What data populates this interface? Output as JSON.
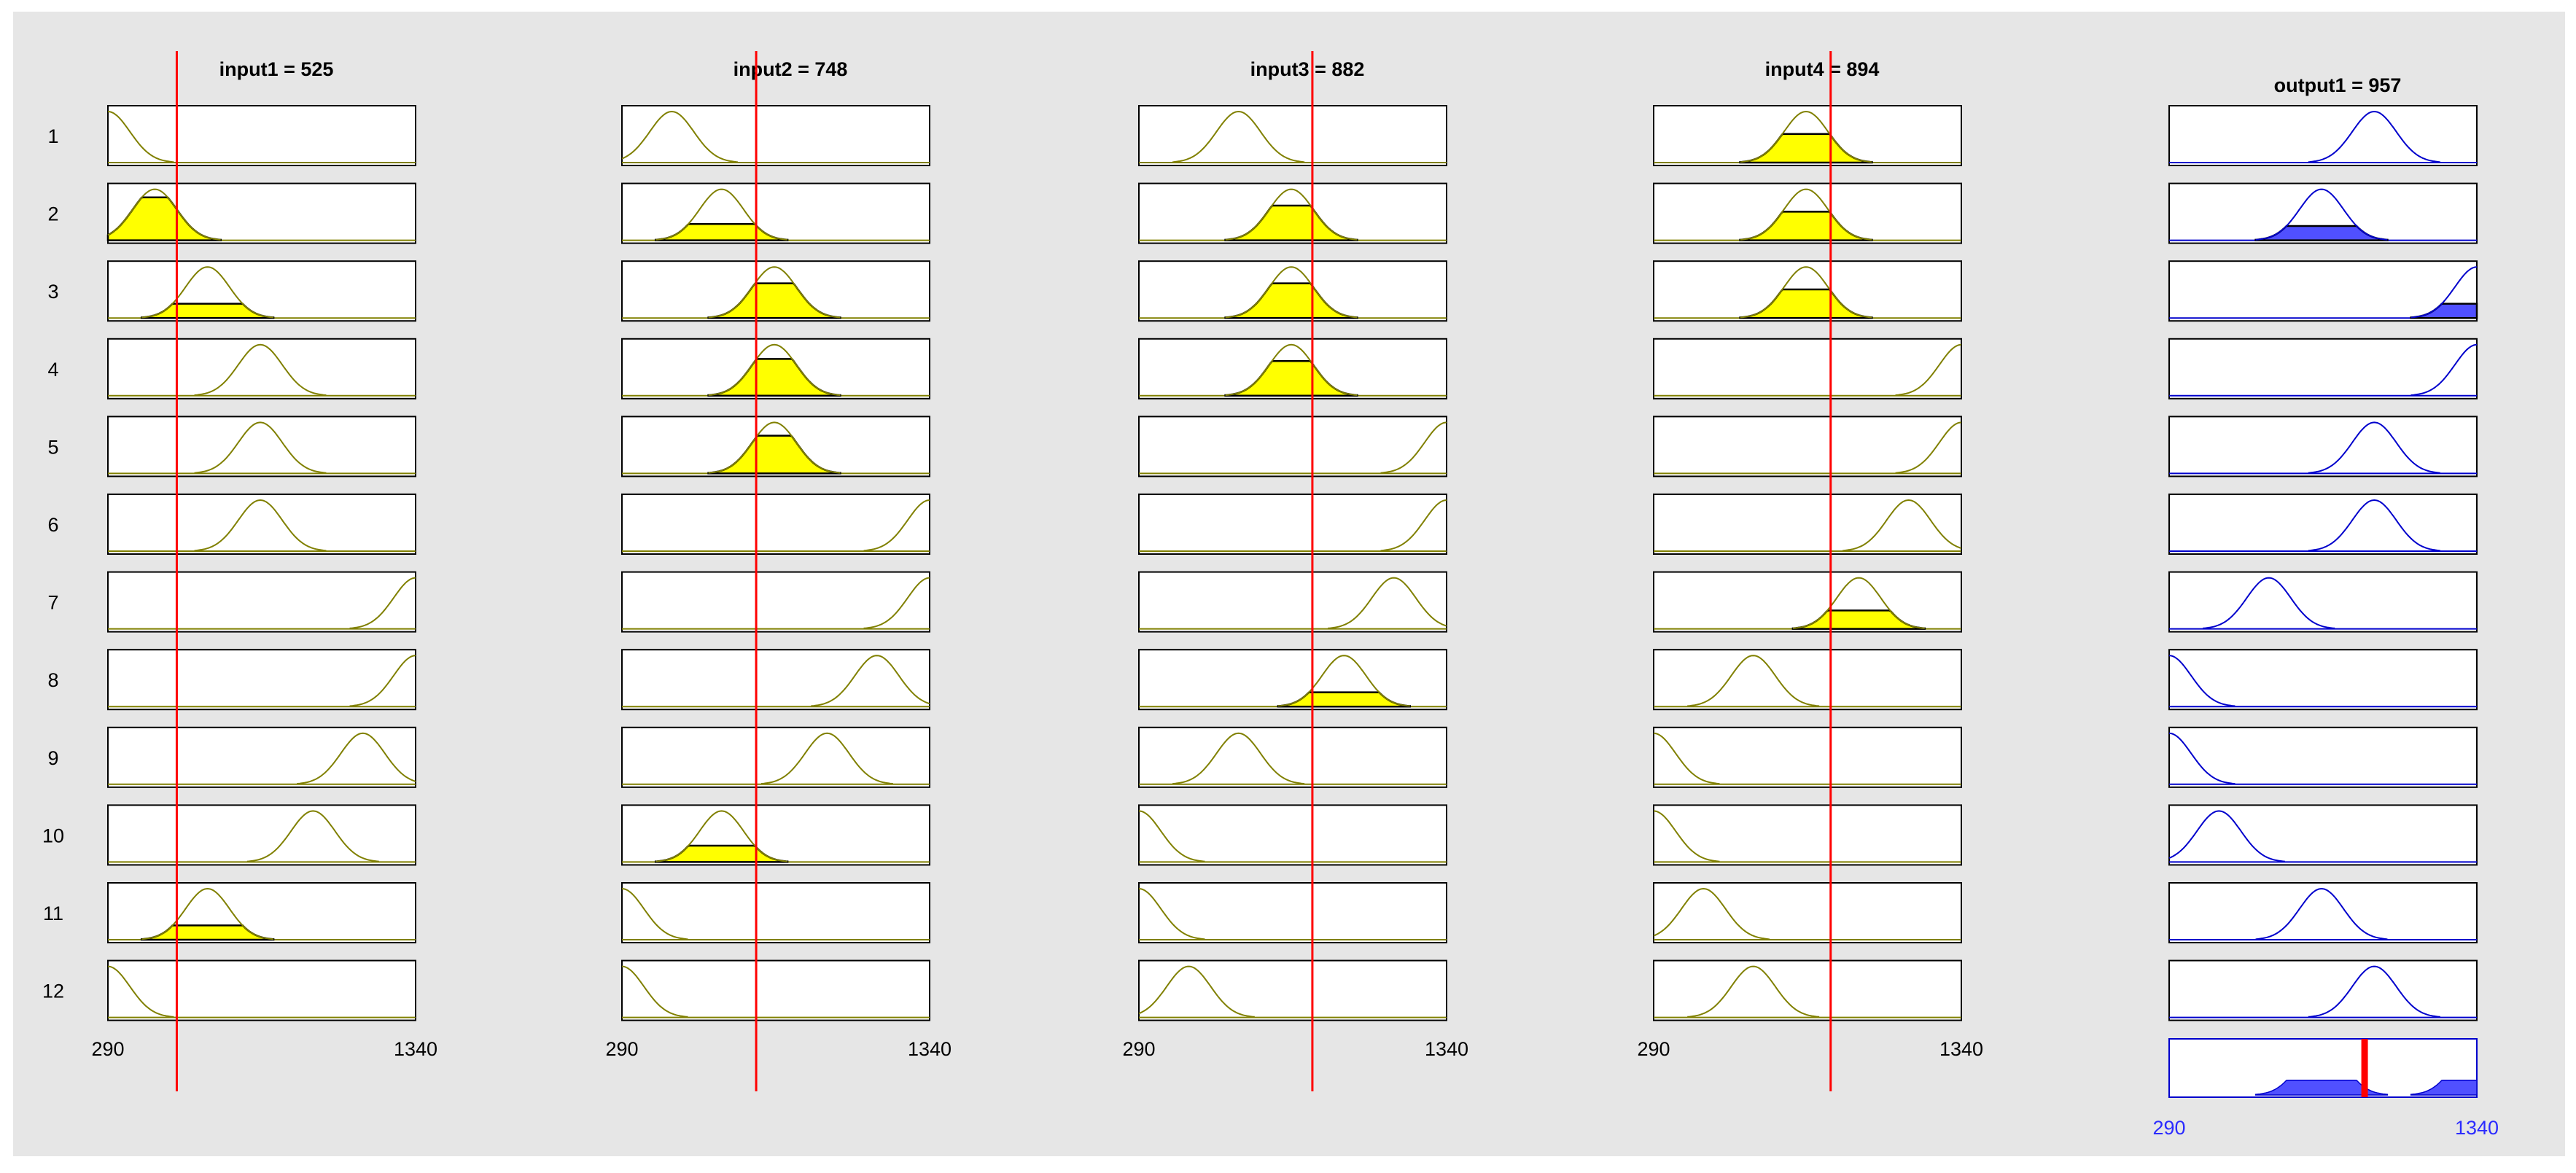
{
  "window": {
    "background": "#e6e6e6"
  },
  "range": {
    "min": 290,
    "max": 1340,
    "min_label": "290",
    "max_label": "1340"
  },
  "colors": {
    "input_curve": "#808000",
    "input_fill": "#ffff00",
    "output_curve": "#0000cc",
    "output_fill": "#5050ff",
    "marker": "#ff0000",
    "output_axis_label": "#2b2bff"
  },
  "inputs": [
    {
      "name": "input1",
      "value": 525,
      "title": "input1 = 525"
    },
    {
      "name": "input2",
      "value": 748,
      "title": "input2 = 748"
    },
    {
      "name": "input3",
      "value": 882,
      "title": "input3 = 882"
    },
    {
      "name": "input4",
      "value": 894,
      "title": "input4 = 894"
    }
  ],
  "output": {
    "name": "output1",
    "value": 957,
    "title": "output1 = 957"
  },
  "rule_labels": [
    "1",
    "2",
    "3",
    "4",
    "5",
    "6",
    "7",
    "8",
    "9",
    "10",
    "11",
    "12"
  ],
  "membership_centers": {
    "input1": [
      290,
      450,
      630,
      810,
      810,
      810,
      1340,
      1340,
      1160,
      990,
      630,
      290
    ],
    "input2": [
      460,
      630,
      810,
      810,
      810,
      1340,
      1340,
      1160,
      990,
      630,
      290,
      290
    ],
    "input3": [
      630,
      810,
      810,
      810,
      1340,
      1340,
      1160,
      990,
      630,
      290,
      290,
      460
    ],
    "input4": [
      810,
      810,
      810,
      1340,
      1340,
      1160,
      990,
      630,
      290,
      290,
      460,
      630
    ],
    "output1": [
      990,
      810,
      1340,
      1340,
      990,
      990,
      630,
      290,
      290,
      460,
      810,
      990
    ]
  },
  "firing_levels": {
    "input1": [
      0,
      0.84,
      0.28,
      0,
      0,
      0,
      0,
      0,
      0,
      0,
      0.28,
      0
    ],
    "input2": [
      0,
      0.32,
      0.68,
      0.72,
      0.74,
      0,
      0,
      0,
      0,
      0.32,
      0,
      0
    ],
    "input3": [
      0,
      0.68,
      0.68,
      0.68,
      0,
      0,
      0,
      0.28,
      0,
      0,
      0,
      0
    ],
    "input4": [
      0.56,
      0.56,
      0.56,
      0,
      0,
      0,
      0.36,
      0,
      0,
      0,
      0,
      0
    ],
    "output1": [
      0,
      0.28,
      0.28,
      0,
      0,
      0,
      0,
      0,
      0,
      0,
      0,
      0
    ]
  },
  "aggregate": {
    "segments": [
      {
        "center": 810,
        "level": 0.28
      },
      {
        "center": 1340,
        "level": 0.28
      }
    ]
  }
}
